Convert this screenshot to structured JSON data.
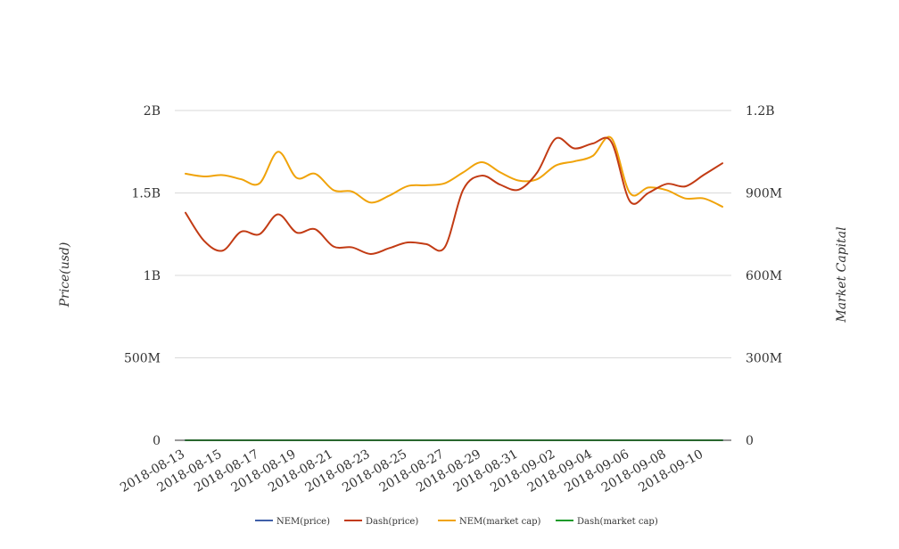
{
  "chart_data": {
    "type": "line",
    "y_left_label": "Price(usd)",
    "y_right_label": "Market Capital",
    "y_left_ticks": [
      "0",
      "500M",
      "1B",
      "1.5B",
      "2B"
    ],
    "y_right_ticks": [
      "0",
      "300M",
      "600M",
      "900M",
      "1.2B"
    ],
    "y_left_lim": [
      0,
      2000000000
    ],
    "y_right_lim": [
      0,
      1200000000
    ],
    "grid": true,
    "legend_position": "bottom",
    "x_tick_labels": [
      "2018-08-13",
      "2018-08-15",
      "2018-08-17",
      "2018-08-19",
      "2018-08-21",
      "2018-08-23",
      "2018-08-25",
      "2018-08-27",
      "2018-08-29",
      "2018-08-31",
      "2018-09-02",
      "2018-09-04",
      "2018-09-06",
      "2018-09-08",
      "2018-09-10"
    ],
    "x": [
      "2018-08-13",
      "2018-08-14",
      "2018-08-15",
      "2018-08-16",
      "2018-08-17",
      "2018-08-18",
      "2018-08-19",
      "2018-08-20",
      "2018-08-21",
      "2018-08-22",
      "2018-08-23",
      "2018-08-24",
      "2018-08-25",
      "2018-08-26",
      "2018-08-27",
      "2018-08-28",
      "2018-08-29",
      "2018-08-30",
      "2018-08-31",
      "2018-09-01",
      "2018-09-02",
      "2018-09-03",
      "2018-09-04",
      "2018-09-05",
      "2018-09-06",
      "2018-09-07",
      "2018-09-08",
      "2018-09-09",
      "2018-09-10",
      "2018-09-11"
    ],
    "series": [
      {
        "name": "NEM(price)",
        "color": "#3f5fa8",
        "axis": "left",
        "values": [
          0.1,
          0.1,
          0.1,
          0.1,
          0.1,
          0.1,
          0.1,
          0.1,
          0.1,
          0.1,
          0.1,
          0.1,
          0.1,
          0.1,
          0.1,
          0.1,
          0.1,
          0.1,
          0.1,
          0.1,
          0.1,
          0.1,
          0.1,
          0.1,
          0.1,
          0.1,
          0.1,
          0.1,
          0.1,
          0.1
        ]
      },
      {
        "name": "Dash(price)",
        "color": "#c23b14",
        "axis": "left",
        "values": [
          1380000000,
          1210000000,
          1150000000,
          1265000000,
          1250000000,
          1370000000,
          1260000000,
          1280000000,
          1175000000,
          1170000000,
          1130000000,
          1165000000,
          1200000000,
          1190000000,
          1170000000,
          1520000000,
          1605000000,
          1550000000,
          1520000000,
          1625000000,
          1830000000,
          1770000000,
          1800000000,
          1810000000,
          1450000000,
          1500000000,
          1555000000,
          1540000000,
          1610000000,
          1680000000
        ]
      },
      {
        "name": "NEM(market cap)",
        "color": "#f0a30a",
        "axis": "right",
        "values": [
          970000000,
          960000000,
          965000000,
          950000000,
          935000000,
          1050000000,
          955000000,
          970000000,
          910000000,
          905000000,
          865000000,
          890000000,
          925000000,
          928000000,
          935000000,
          975000000,
          1012000000,
          975000000,
          945000000,
          950000000,
          1000000000,
          1015000000,
          1035000000,
          1100000000,
          900000000,
          920000000,
          910000000,
          880000000,
          880000000,
          850000000
        ]
      },
      {
        "name": "Dash(market cap)",
        "color": "#1c9a2a",
        "axis": "right",
        "values": [
          0.1,
          0.1,
          0.1,
          0.1,
          0.1,
          0.1,
          0.1,
          0.1,
          0.1,
          0.1,
          0.1,
          0.1,
          0.1,
          0.1,
          0.1,
          0.1,
          0.1,
          0.1,
          0.1,
          0.1,
          0.1,
          0.1,
          0.1,
          0.1,
          0.1,
          0.1,
          0.1,
          0.1,
          0.1,
          0.1
        ]
      }
    ]
  }
}
